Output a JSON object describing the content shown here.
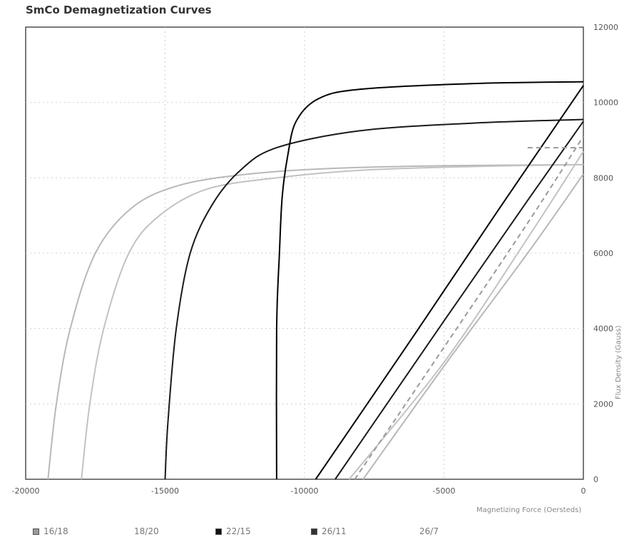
{
  "chart_data": {
    "type": "line",
    "title": "SmCo Demagnetization Curves",
    "xlabel": "Magnetizing Force (Oersteds)",
    "ylabel": "Flux Density (Gauss)",
    "xlim": [
      -20000,
      0
    ],
    "ylim": [
      0,
      12000
    ],
    "x_ticks": [
      -20000,
      -15000,
      -10000,
      -5000,
      0
    ],
    "x_tick_labels": [
      "-20000",
      "-15000",
      "-10000",
      "-5000",
      "0"
    ],
    "y_ticks": [
      0,
      2000,
      4000,
      6000,
      8000,
      10000,
      12000
    ],
    "y_tick_labels": [
      "0",
      "2000",
      "4000",
      "6000",
      "8000",
      "10000",
      "12000"
    ],
    "grid": true,
    "legend_position": "bottom",
    "series": [
      {
        "name": "16/18",
        "color": "#b8b8b8",
        "intrinsic": [
          [
            -19200,
            0
          ],
          [
            -18900,
            2000
          ],
          [
            -18400,
            4000
          ],
          [
            -17500,
            6000
          ],
          [
            -16200,
            7200
          ],
          [
            -14500,
            7800
          ],
          [
            -12000,
            8100
          ],
          [
            -9000,
            8250
          ],
          [
            -5000,
            8320
          ],
          [
            0,
            8350
          ]
        ],
        "normal": [
          [
            -7900,
            0
          ],
          [
            -5000,
            3000
          ],
          [
            -2000,
            6000
          ],
          [
            0,
            8100
          ]
        ]
      },
      {
        "name": "18/20",
        "color": "#c2c2c2",
        "intrinsic": [
          [
            -18000,
            0
          ],
          [
            -17700,
            2000
          ],
          [
            -17200,
            4000
          ],
          [
            -16300,
            6000
          ],
          [
            -15200,
            7000
          ],
          [
            -13500,
            7700
          ],
          [
            -11000,
            8000
          ],
          [
            -8000,
            8200
          ],
          [
            -4000,
            8300
          ],
          [
            0,
            8350
          ]
        ],
        "normal": [
          [
            -8400,
            0
          ],
          [
            -5000,
            3100
          ],
          [
            -2000,
            6400
          ],
          [
            0,
            8700
          ]
        ]
      },
      {
        "name": "22/15",
        "color": "#1a1a1a",
        "intrinsic": [
          [
            -15000,
            0
          ],
          [
            -14900,
            1500
          ],
          [
            -14600,
            4000
          ],
          [
            -14100,
            6000
          ],
          [
            -13300,
            7300
          ],
          [
            -12300,
            8200
          ],
          [
            -11000,
            8800
          ],
          [
            -8000,
            9250
          ],
          [
            -4000,
            9450
          ],
          [
            0,
            9550
          ]
        ],
        "normal": [
          [
            -8900,
            0
          ],
          [
            -5000,
            4200
          ],
          [
            -2000,
            7400
          ],
          [
            0,
            9500
          ]
        ]
      },
      {
        "name": "26/11",
        "color": "#000000",
        "intrinsic": [
          [
            -11000,
            0
          ],
          [
            -11000,
            4000
          ],
          [
            -10900,
            6000
          ],
          [
            -10800,
            7500
          ],
          [
            -10600,
            8600
          ],
          [
            -10300,
            9500
          ],
          [
            -9500,
            10100
          ],
          [
            -8000,
            10350
          ],
          [
            -4000,
            10500
          ],
          [
            0,
            10550
          ]
        ],
        "normal": [
          [
            -9600,
            0
          ],
          [
            -6000,
            3900
          ],
          [
            -3000,
            7200
          ],
          [
            0,
            10450
          ]
        ]
      },
      {
        "name": "26/7",
        "color": "#9a9a9a",
        "intrinsic": [
          [
            -2000,
            8800
          ],
          [
            -1000,
            8800
          ],
          [
            0,
            8800
          ]
        ],
        "normal": [
          [
            -8200,
            0
          ],
          [
            -5000,
            3500
          ],
          [
            -2000,
            6800
          ],
          [
            0,
            9100
          ]
        ]
      }
    ]
  },
  "legend": [
    {
      "label": "16/18",
      "marker_color": "#9a9a9a"
    },
    {
      "label": "18/20",
      "marker_color": "#ffffff"
    },
    {
      "label": "22/15",
      "marker_color": "#111111"
    },
    {
      "label": "26/11",
      "marker_color": "#333333"
    },
    {
      "label": "26/7",
      "marker_color": "#ffffff"
    }
  ]
}
